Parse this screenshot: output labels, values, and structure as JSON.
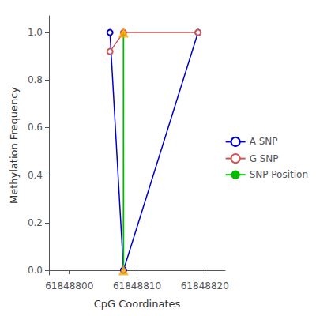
{
  "chart_data": {
    "type": "line",
    "xlabel": "CpG Coordinates",
    "ylabel": "Methylation Frequency",
    "series": [
      {
        "name": "A SNP",
        "type": "line",
        "color": "#0000cc",
        "marker": "circle",
        "x": [
          61848806,
          61848808,
          61848819
        ],
        "values": [
          1.0,
          0.0,
          1.0
        ]
      },
      {
        "name": "G SNP",
        "type": "line",
        "color": "#cc5555",
        "marker": "circle",
        "x": [
          61848806,
          61848808,
          61848819
        ],
        "values": [
          0.92,
          1.0,
          1.0
        ]
      },
      {
        "name": "SNP Position",
        "type": "line",
        "color": "#00bb00",
        "marker": "none",
        "x": [
          61848808,
          61848808
        ],
        "values": [
          0.0,
          1.0
        ]
      },
      {
        "type": "scatter",
        "color": "#FFA500",
        "marker": "triangle",
        "x": [
          61848808,
          61848808
        ],
        "values": [
          0.0,
          1.0
        ]
      }
    ],
    "xlim": [
      61848797,
      61848823
    ],
    "xticks": [
      61848800,
      61848810,
      61848820
    ],
    "ylim": [
      -0.02,
      1.07
    ],
    "yticks": [
      {
        "value": 0.0,
        "label": "0.0"
      },
      0.2,
      0.4,
      0.6,
      0.8,
      {
        "value": 1.0,
        "label": "1.0"
      }
    ],
    "grid": false,
    "legend": "right"
  }
}
